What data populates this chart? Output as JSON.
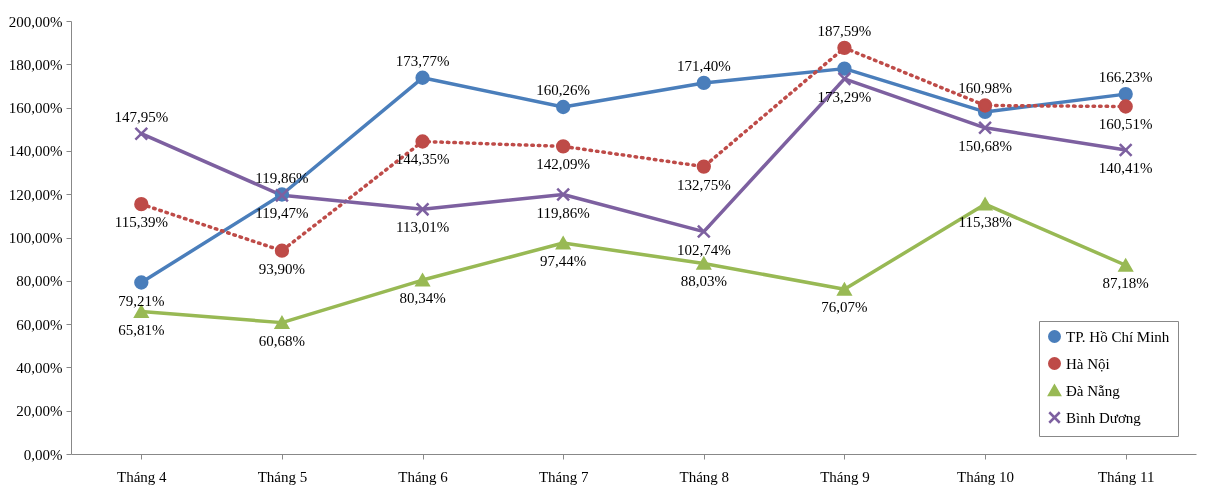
{
  "chart_data": {
    "type": "line",
    "categories": [
      "Tháng 4",
      "Tháng 5",
      "Tháng 6",
      "Tháng 7",
      "Tháng 8",
      "Tháng 9",
      "Tháng 10",
      "Tháng 11"
    ],
    "series": [
      {
        "name": "TP. Hồ Chí Minh",
        "color": "#4a7ebb",
        "marker": "circle",
        "line_style": "solid",
        "values": [
          79.21,
          119.86,
          173.77,
          160.26,
          171.4,
          178,
          158,
          166.23
        ],
        "value_labels": [
          "79,21%",
          "119,86%",
          "173,77%",
          "160,26%",
          "171,40%",
          null,
          null,
          "166,23%"
        ]
      },
      {
        "name": "Hà Nội",
        "color": "#be4b48",
        "marker": "circle",
        "line_style": "dotted",
        "values": [
          115.39,
          93.9,
          144.35,
          142.09,
          132.75,
          187.59,
          160.98,
          160.51
        ],
        "value_labels": [
          "115,39%",
          "93,90%",
          "144,35%",
          "142,09%",
          "132,75%",
          "187,59%",
          "160,98%",
          "160,51%"
        ]
      },
      {
        "name": "Đà Nẵng",
        "color": "#98b954",
        "marker": "triangle",
        "line_style": "solid",
        "values": [
          65.81,
          60.68,
          80.34,
          97.44,
          88.03,
          76.07,
          115.38,
          87.18
        ],
        "value_labels": [
          "65,81%",
          "60,68%",
          "80,34%",
          "97,44%",
          "88,03%",
          "76,07%",
          "115,38%",
          "87,18%"
        ]
      },
      {
        "name": "Bình Dương",
        "color": "#7d60a0",
        "marker": "cross",
        "line_style": "solid",
        "values": [
          147.95,
          119.47,
          113.01,
          119.86,
          102.74,
          173.29,
          150.68,
          140.41
        ],
        "value_labels": [
          "147,95%",
          "119,47%",
          "113,01%",
          "119,86%",
          "102,74%",
          "173,29%",
          "150,68%",
          "140,41%"
        ]
      }
    ],
    "ylim": [
      0,
      200
    ],
    "yticks": [
      {
        "value": 0,
        "label": "0,00%"
      },
      {
        "value": 20,
        "label": "20,00%"
      },
      {
        "value": 40,
        "label": "40,00%"
      },
      {
        "value": 60,
        "label": "60,00%"
      },
      {
        "value": 80,
        "label": "80,00%"
      },
      {
        "value": 100,
        "label": "100,00%"
      },
      {
        "value": 120,
        "label": "120,00%"
      },
      {
        "value": 140,
        "label": "140,00%"
      },
      {
        "value": 160,
        "label": "160,00%"
      },
      {
        "value": 180,
        "label": "180,00%"
      },
      {
        "value": 200,
        "label": "200,00%"
      }
    ],
    "grid": false,
    "legend": "bottom right"
  }
}
